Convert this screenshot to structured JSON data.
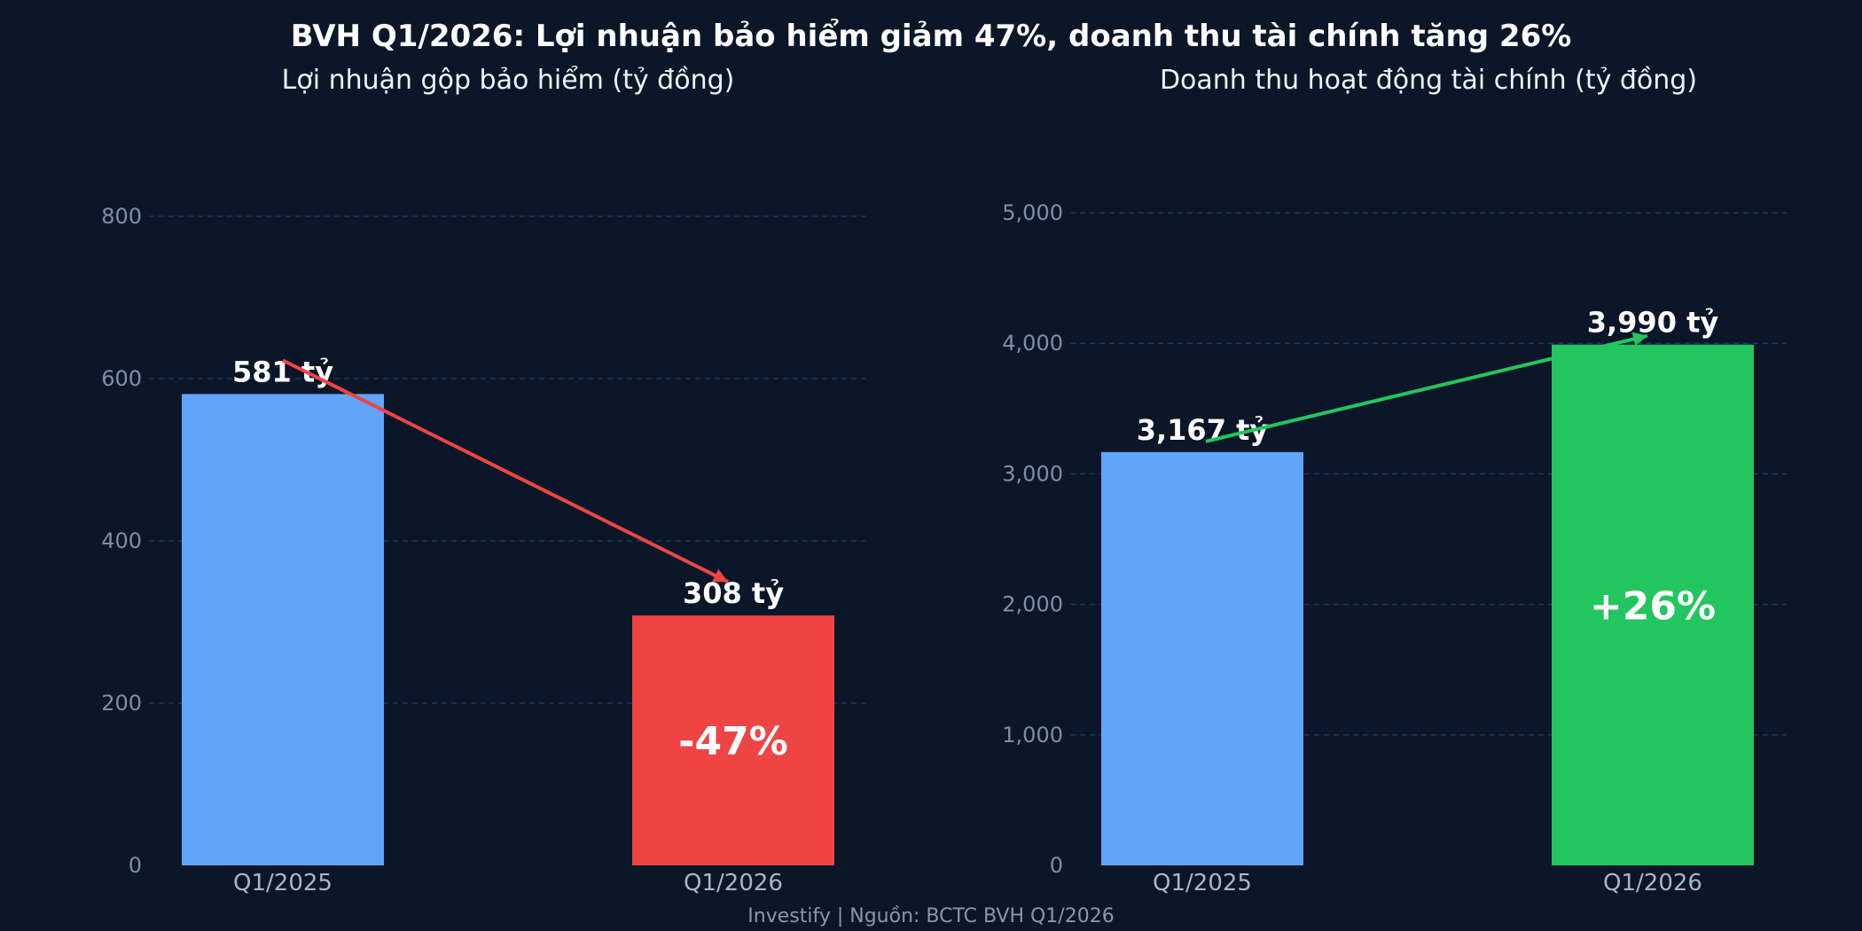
{
  "title": "BVH Q1/2026: Lợi nhuận bảo hiểm giảm 47%, doanh thu tài chính tăng 26%",
  "footer": "Investify  |  Nguồn: BCTC BVH Q1/2026",
  "colors": {
    "background": "#0b1729",
    "base_bar": "#60a5fa",
    "decrease": "#ef4444",
    "increase": "#22c55e",
    "gridline": "#1f3a66",
    "text": "#ffffff",
    "tick_text": "#7f8ea3"
  },
  "chart_data": [
    {
      "type": "bar",
      "title": "Lợi nhuận gộp bảo hiểm  (tỷ đồng)",
      "categories": [
        "Q1/2025",
        "Q1/2026"
      ],
      "values": [
        581,
        308
      ],
      "value_labels": [
        "581 tỷ",
        "308 tỷ"
      ],
      "change_label": "-47%",
      "trend": "decrease",
      "ylim": [
        0,
        800
      ],
      "yticks": [
        0,
        200,
        400,
        600,
        800
      ],
      "ytick_labels": [
        "0",
        "200",
        "400",
        "600",
        "800"
      ],
      "grid": true
    },
    {
      "type": "bar",
      "title": "Doanh thu hoạt động tài chính  (tỷ đồng)",
      "categories": [
        "Q1/2025",
        "Q1/2026"
      ],
      "values": [
        3167,
        3990
      ],
      "value_labels": [
        "3,167 tỷ",
        "3,990 tỷ"
      ],
      "change_label": "+26%",
      "trend": "increase",
      "ylim": [
        0,
        5000
      ],
      "yticks": [
        0,
        1000,
        2000,
        3000,
        4000,
        5000
      ],
      "ytick_labels": [
        "0",
        "1,000",
        "2,000",
        "3,000",
        "4,000",
        "5,000"
      ],
      "grid": true
    }
  ]
}
